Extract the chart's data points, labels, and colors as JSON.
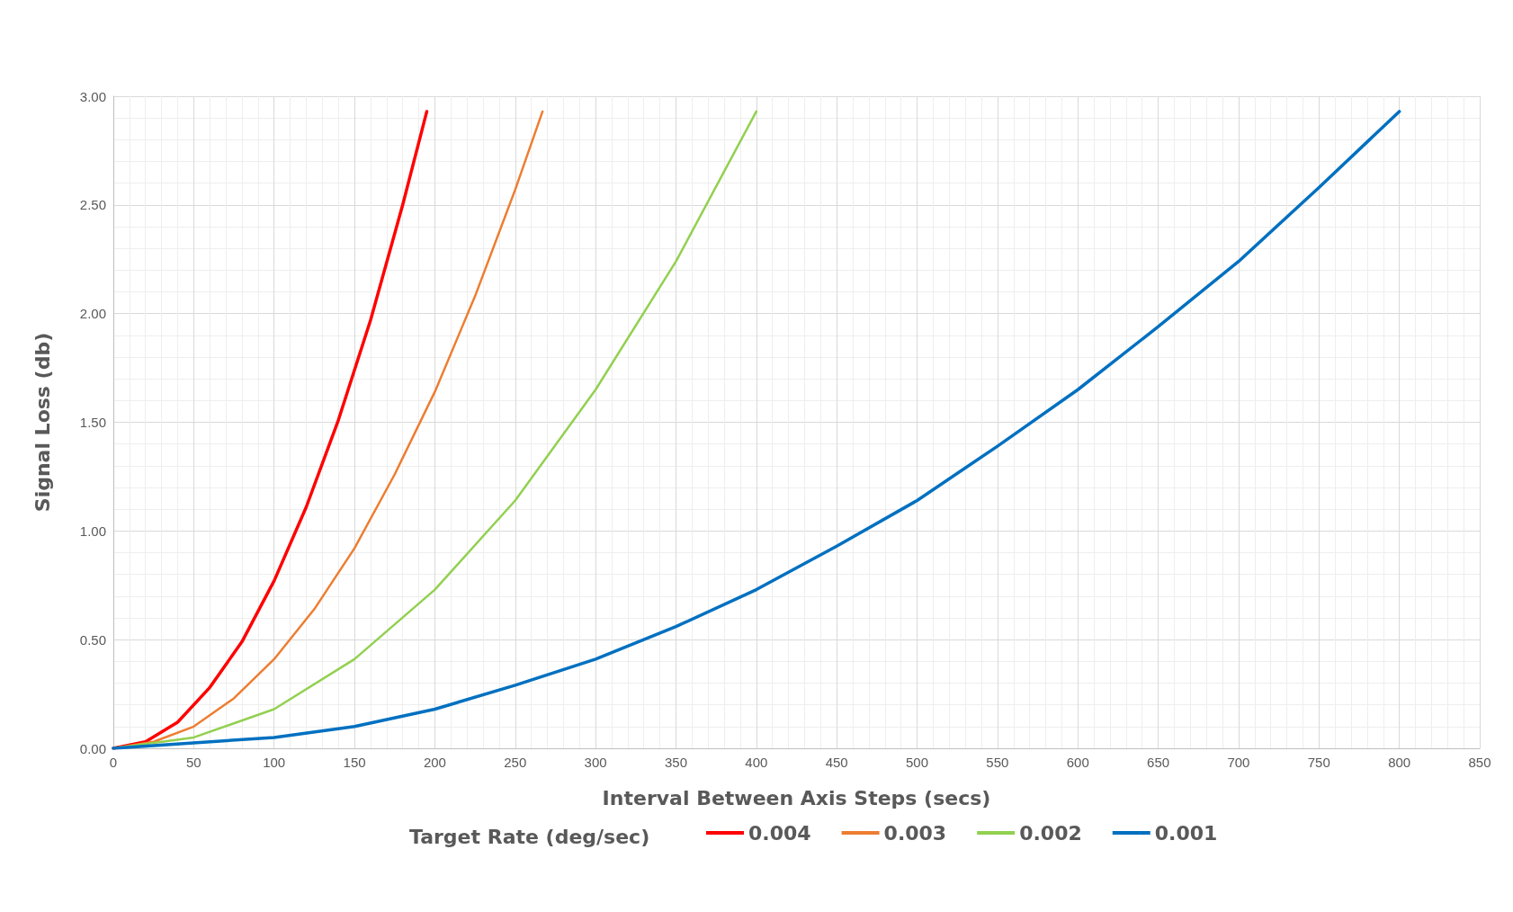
{
  "chart_data": {
    "type": "line",
    "xlabel": "Interval Between Axis Steps (secs)",
    "ylabel": "Signal Loss (db)",
    "legend_title": "Target Rate (deg/sec)",
    "legend": "bottom",
    "grid": true,
    "marker": "none",
    "line_style": "solid",
    "xlim": [
      0,
      850
    ],
    "xticks": [
      0,
      50,
      100,
      150,
      200,
      250,
      300,
      350,
      400,
      450,
      500,
      550,
      600,
      650,
      700,
      750,
      800,
      850
    ],
    "ylim": [
      0,
      3
    ],
    "yticks": [
      {
        "value": 0,
        "label": "0.00"
      },
      {
        "value": 0.5,
        "label": "0.50"
      },
      {
        "value": 1,
        "label": "1.00"
      },
      {
        "value": 1.5,
        "label": "1.50"
      },
      {
        "value": 2,
        "label": "2.00"
      },
      {
        "value": 2.5,
        "label": "2.50"
      },
      {
        "value": 3,
        "label": "3.00"
      }
    ],
    "series": [
      {
        "name": "0.004",
        "color": "#ff0000",
        "x": [
          0,
          20,
          40,
          60,
          80,
          100,
          120,
          140,
          160,
          180,
          195
        ],
        "values": [
          0,
          0.03,
          0.12,
          0.28,
          0.49,
          0.77,
          1.11,
          1.51,
          1.97,
          2.5,
          2.93
        ]
      },
      {
        "name": "0.003",
        "color": "#ed7d31",
        "x": [
          0,
          25,
          50,
          75,
          100,
          125,
          150,
          175,
          200,
          225,
          250,
          267
        ],
        "values": [
          0,
          0.03,
          0.1,
          0.23,
          0.41,
          0.64,
          0.92,
          1.26,
          1.64,
          2.08,
          2.57,
          2.93
        ]
      },
      {
        "name": "0.002",
        "color": "#92d050",
        "x": [
          0,
          50,
          100,
          150,
          200,
          250,
          300,
          350,
          400
        ],
        "values": [
          0,
          0.05,
          0.18,
          0.41,
          0.73,
          1.14,
          1.65,
          2.24,
          2.93
        ]
      },
      {
        "name": "0.001",
        "color": "#0070c0",
        "x": [
          0,
          100,
          150,
          200,
          250,
          300,
          350,
          400,
          450,
          500,
          550,
          600,
          650,
          700,
          750,
          800
        ],
        "values": [
          0,
          0.05,
          0.1,
          0.18,
          0.29,
          0.41,
          0.56,
          0.73,
          0.93,
          1.14,
          1.39,
          1.65,
          1.94,
          2.24,
          2.58,
          2.93
        ]
      }
    ]
  }
}
